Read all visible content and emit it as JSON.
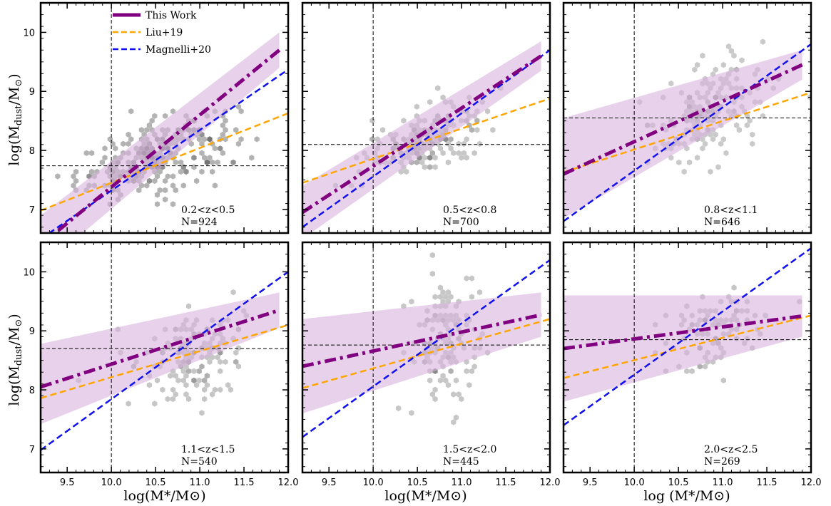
{
  "figure": {
    "xlabels": [
      "log(M*/M⊙)",
      "log(M*/M⊙)",
      "log (M*/M⊙)"
    ],
    "ylabel": "log(Mdust/M⊙)"
  },
  "legend": {
    "placement": "top-left of first panel",
    "entries": [
      {
        "label": "This Work",
        "color": "#800080",
        "style": "dashdot"
      },
      {
        "label": "Liu+19",
        "color": "#FFA500",
        "style": "dashed"
      },
      {
        "label": "Magnelli+20",
        "color": "#0000FF",
        "style": "dashed"
      }
    ]
  },
  "colors": {
    "this_work": "#800080",
    "band": "#D8B4DE",
    "liu": "#FFA500",
    "magnelli": "#1010EE",
    "ref": "#000000"
  },
  "chart_data": [
    {
      "type": "scatter",
      "panel": "0.2<z<0.5",
      "z_label": "0.2<z<0.5",
      "n_label": "N=924",
      "xlim": [
        9.2,
        12.0
      ],
      "ylim": [
        6.6,
        10.5
      ],
      "xticks": [
        "9.5",
        "10.0",
        "10.5",
        "11.0",
        "11.5",
        "12.0"
      ],
      "yticks": [
        "7",
        "8",
        "9",
        "10"
      ],
      "vline_x": 10.0,
      "hline_y": 7.74,
      "this_work": {
        "x": [
          9.2,
          11.9
        ],
        "y": [
          6.4,
          9.7
        ],
        "band_upper": [
          6.9,
          10.0
        ],
        "band_lower": [
          6.0,
          9.4
        ]
      },
      "liu": {
        "x": [
          9.2,
          12.0
        ],
        "y": [
          6.98,
          8.63
        ]
      },
      "magnelli": {
        "x": [
          9.2,
          12.0
        ],
        "y": [
          6.5,
          9.37
        ]
      },
      "density": {
        "cx": 10.5,
        "cy": 7.9,
        "sx": 0.45,
        "sy": 0.35,
        "rho": 0.55,
        "n": 260,
        "dark": 0.75
      }
    },
    {
      "type": "scatter",
      "panel": "0.5<z<0.8",
      "z_label": "0.5<z<0.8",
      "n_label": "N=700",
      "xlim": [
        9.2,
        12.0
      ],
      "ylim": [
        6.6,
        10.5
      ],
      "xticks": [
        "9.5",
        "10.0",
        "10.5",
        "11.0",
        "11.5",
        "12.0"
      ],
      "yticks": [
        "7",
        "8",
        "9",
        "10"
      ],
      "vline_x": 10.0,
      "hline_y": 8.1,
      "this_work": {
        "x": [
          9.2,
          11.9
        ],
        "y": [
          6.95,
          9.6
        ],
        "band_upper": [
          7.4,
          9.85
        ],
        "band_lower": [
          6.5,
          9.35
        ]
      },
      "liu": {
        "x": [
          9.2,
          12.0
        ],
        "y": [
          7.45,
          8.88
        ]
      },
      "magnelli": {
        "x": [
          9.2,
          12.0
        ],
        "y": [
          6.7,
          9.7
        ]
      },
      "density": {
        "cx": 10.6,
        "cy": 8.2,
        "sx": 0.35,
        "sy": 0.3,
        "rho": 0.5,
        "n": 200,
        "dark": 0.6
      }
    },
    {
      "type": "scatter",
      "panel": "0.8<z<1.1",
      "z_label": "0.8<z<1.1",
      "n_label": "N=646",
      "xlim": [
        9.2,
        12.0
      ],
      "ylim": [
        6.6,
        10.5
      ],
      "xticks": [
        "9.5",
        "10.0",
        "10.5",
        "11.0",
        "11.5",
        "12.0"
      ],
      "yticks": [
        "7",
        "8",
        "9",
        "10"
      ],
      "vline_x": 10.0,
      "hline_y": 8.55,
      "this_work": {
        "x": [
          9.2,
          11.9
        ],
        "y": [
          7.6,
          9.45
        ],
        "band_upper": [
          8.55,
          9.7
        ],
        "band_lower": [
          6.85,
          9.2
        ]
      },
      "liu": {
        "x": [
          9.2,
          12.0
        ],
        "y": [
          7.63,
          8.98
        ]
      },
      "magnelli": {
        "x": [
          9.2,
          12.0
        ],
        "y": [
          6.8,
          9.8
        ]
      },
      "density": {
        "cx": 10.8,
        "cy": 8.6,
        "sx": 0.3,
        "sy": 0.45,
        "rho": 0.3,
        "n": 170,
        "dark": 0.55
      }
    },
    {
      "type": "scatter",
      "panel": "1.1<z<1.5",
      "z_label": "1.1<z<1.5",
      "n_label": "N=540",
      "xlim": [
        9.2,
        12.0
      ],
      "ylim": [
        6.6,
        10.5
      ],
      "xticks": [
        "9.5",
        "10.0",
        "10.5",
        "11.0",
        "11.5",
        "12.0"
      ],
      "yticks": [
        "7",
        "8",
        "9",
        "10"
      ],
      "vline_x": 10.0,
      "hline_y": 8.7,
      "this_work": {
        "x": [
          9.2,
          11.9
        ],
        "y": [
          8.05,
          9.35
        ],
        "band_upper": [
          8.78,
          9.65
        ],
        "band_lower": [
          7.42,
          9.05
        ]
      },
      "liu": {
        "x": [
          9.2,
          12.0
        ],
        "y": [
          7.86,
          9.1
        ]
      },
      "magnelli": {
        "x": [
          9.2,
          12.0
        ],
        "y": [
          6.98,
          10.0
        ]
      },
      "density": {
        "cx": 10.9,
        "cy": 8.55,
        "sx": 0.3,
        "sy": 0.4,
        "rho": 0.2,
        "n": 150,
        "dark": 0.5
      }
    },
    {
      "type": "scatter",
      "panel": "1.5<z<2.0",
      "z_label": "1.5<z<2.0",
      "n_label": "N=445",
      "xlim": [
        9.2,
        12.0
      ],
      "ylim": [
        6.6,
        10.5
      ],
      "xticks": [
        "9.5",
        "10.0",
        "10.5",
        "11.0",
        "11.5",
        "12.0"
      ],
      "yticks": [
        "7",
        "8",
        "9",
        "10"
      ],
      "vline_x": 10.0,
      "hline_y": 8.76,
      "this_work": {
        "x": [
          9.2,
          11.9
        ],
        "y": [
          8.4,
          9.27
        ],
        "band_upper": [
          9.2,
          9.65
        ],
        "band_lower": [
          7.6,
          8.9
        ]
      },
      "liu": {
        "x": [
          9.2,
          12.0
        ],
        "y": [
          8.03,
          9.2
        ]
      },
      "magnelli": {
        "x": [
          9.2,
          12.0
        ],
        "y": [
          7.2,
          10.2
        ]
      },
      "density": {
        "cx": 10.8,
        "cy": 8.8,
        "sx": 0.2,
        "sy": 0.55,
        "rho": 0.1,
        "n": 130,
        "dark": 0.6
      }
    },
    {
      "type": "scatter",
      "panel": "2.0<z<2.5",
      "z_label": "2.0<z<2.5",
      "n_label": "N=269",
      "xlim": [
        9.2,
        12.0
      ],
      "ylim": [
        6.6,
        10.5
      ],
      "xticks": [
        "9.5",
        "10.0",
        "10.5",
        "11.0",
        "11.5",
        "12.0"
      ],
      "yticks": [
        "7",
        "8",
        "9",
        "10"
      ],
      "vline_x": 10.0,
      "hline_y": 8.85,
      "this_work": {
        "x": [
          9.2,
          11.9
        ],
        "y": [
          8.7,
          9.25
        ],
        "band_upper": [
          9.6,
          9.6
        ],
        "band_lower": [
          7.8,
          8.9
        ]
      },
      "liu": {
        "x": [
          9.2,
          12.0
        ],
        "y": [
          8.2,
          9.26
        ]
      },
      "magnelli": {
        "x": [
          9.2,
          12.0
        ],
        "y": [
          7.4,
          10.4
        ]
      },
      "density": {
        "cx": 10.9,
        "cy": 9.0,
        "sx": 0.25,
        "sy": 0.35,
        "rho": 0.2,
        "n": 90,
        "dark": 0.5
      }
    }
  ]
}
